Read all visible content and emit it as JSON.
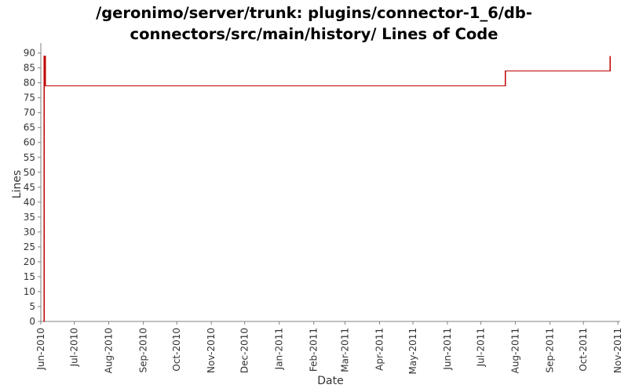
{
  "chart_data": {
    "type": "line",
    "title_lines": [
      "/geronimo/server/trunk: plugins/connector-1_6/db-",
      "connectors/src/main/history/ Lines of Code"
    ],
    "xlabel": "Date",
    "ylabel": "Lines",
    "ylim": [
      0,
      92
    ],
    "yticks": [
      0,
      5,
      10,
      15,
      20,
      25,
      30,
      35,
      40,
      45,
      50,
      55,
      60,
      65,
      70,
      75,
      80,
      85,
      90
    ],
    "xlim": [
      "2010-06-01",
      "2011-11-03"
    ],
    "xticks": [
      {
        "date": "2010-06-01",
        "label": "Jun-2010"
      },
      {
        "date": "2010-07-01",
        "label": "Jul-2010"
      },
      {
        "date": "2010-08-01",
        "label": "Aug-2010"
      },
      {
        "date": "2010-09-01",
        "label": "Sep-2010"
      },
      {
        "date": "2010-10-01",
        "label": "Oct-2010"
      },
      {
        "date": "2010-11-01",
        "label": "Nov-2010"
      },
      {
        "date": "2010-12-01",
        "label": "Dec-2010"
      },
      {
        "date": "2011-01-01",
        "label": "Jan-2011"
      },
      {
        "date": "2011-02-01",
        "label": "Feb-2011"
      },
      {
        "date": "2011-03-01",
        "label": "Mar-2011"
      },
      {
        "date": "2011-04-01",
        "label": "Apr-2011"
      },
      {
        "date": "2011-05-01",
        "label": "May-2011"
      },
      {
        "date": "2011-06-01",
        "label": "Jun-2011"
      },
      {
        "date": "2011-07-01",
        "label": "Jul-2011"
      },
      {
        "date": "2011-08-01",
        "label": "Aug-2011"
      },
      {
        "date": "2011-09-01",
        "label": "Sep-2011"
      },
      {
        "date": "2011-10-01",
        "label": "Oct-2011"
      },
      {
        "date": "2011-11-01",
        "label": "Nov-2011"
      }
    ],
    "step": true,
    "series": [
      {
        "color": "#c00000",
        "points": [
          {
            "x": "2010-06-03",
            "y": 0
          },
          {
            "x": "2010-06-04",
            "y": 89
          },
          {
            "x": "2010-06-05",
            "y": 79
          },
          {
            "x": "2011-07-23",
            "y": 84
          },
          {
            "x": "2011-10-25",
            "y": 89
          }
        ]
      }
    ],
    "grid": false,
    "legend": "none"
  },
  "colors": {
    "line": "#c00000",
    "axis": "#808080",
    "text": "#333333"
  }
}
